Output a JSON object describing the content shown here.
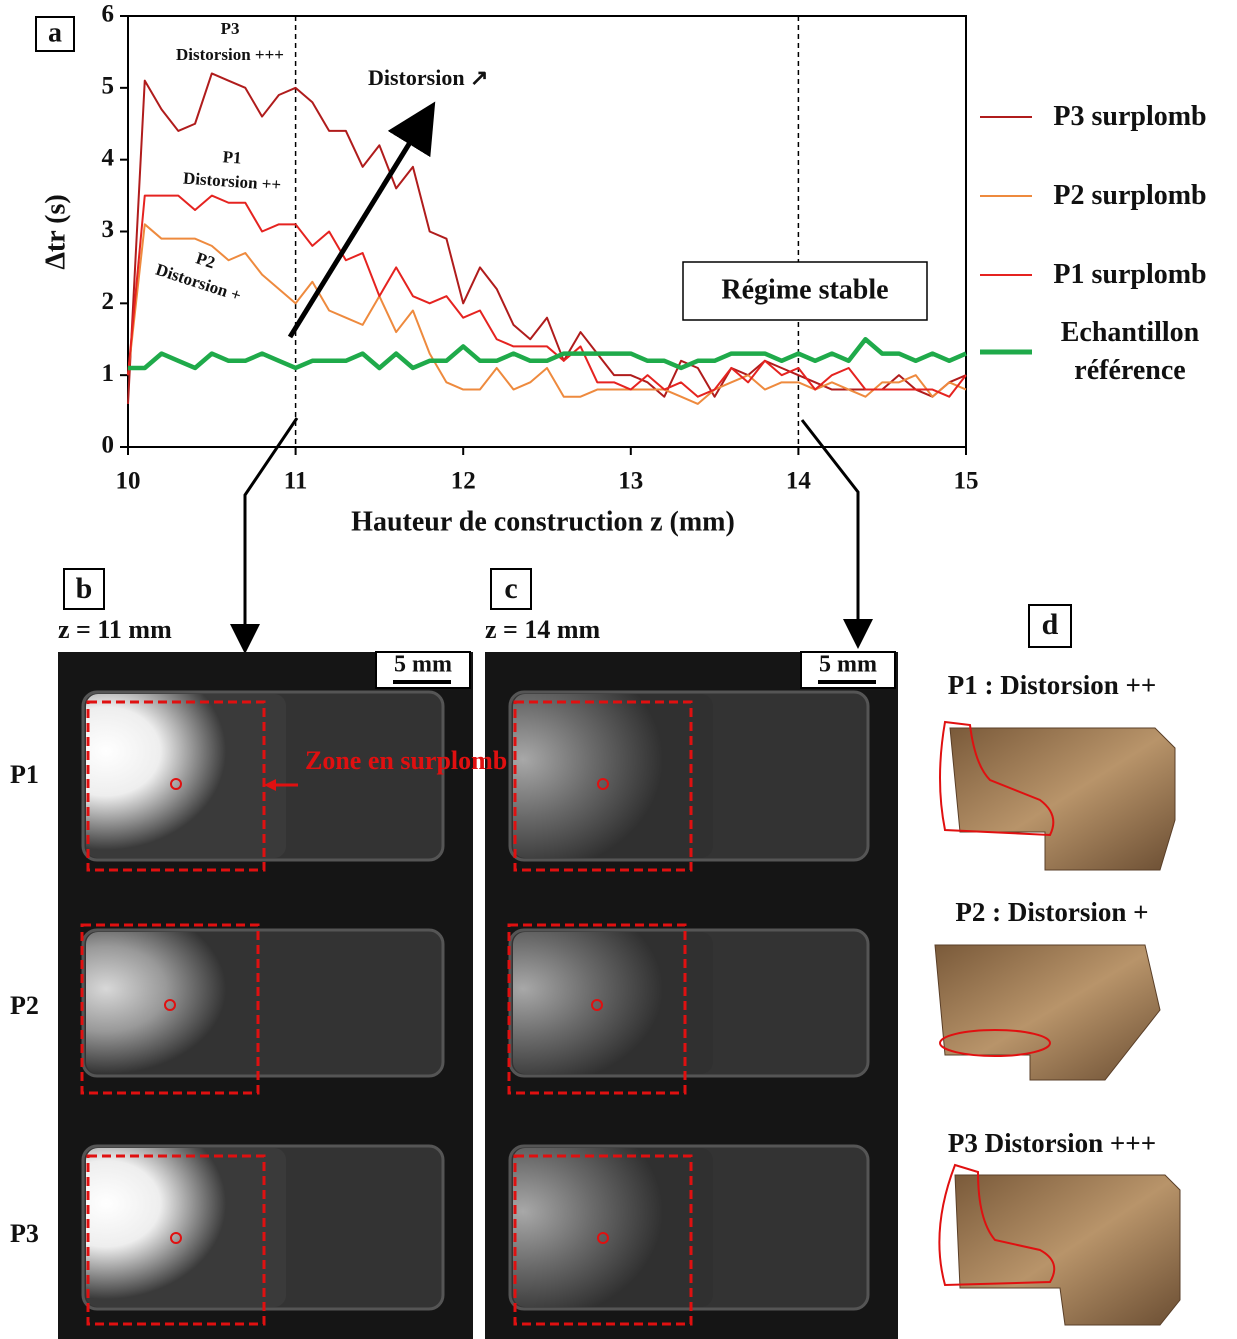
{
  "chart_data": {
    "type": "line",
    "panel_label": "a",
    "y_label": "Δtr (s)",
    "x_label": "Hauteur de construction z (mm)",
    "x": [
      10,
      10.1,
      10.2,
      10.3,
      10.4,
      10.5,
      10.6,
      10.7,
      10.8,
      10.9,
      11,
      11.1,
      11.2,
      11.3,
      11.4,
      11.5,
      11.6,
      11.7,
      11.8,
      11.9,
      12,
      12.1,
      12.2,
      12.3,
      12.4,
      12.5,
      12.6,
      12.7,
      12.8,
      12.9,
      13,
      13.1,
      13.2,
      13.3,
      13.4,
      13.5,
      13.6,
      13.7,
      13.8,
      13.9,
      14,
      14.1,
      14.2,
      14.3,
      14.4,
      14.5,
      14.6,
      14.7,
      14.8,
      14.9,
      15
    ],
    "series": [
      {
        "name": "P3 surplomb",
        "color": "#b01c1c",
        "values": [
          0.6,
          5.1,
          4.7,
          4.4,
          4.5,
          5.2,
          5.1,
          5.0,
          4.6,
          4.9,
          5.0,
          4.8,
          4.4,
          4.4,
          3.9,
          4.2,
          3.6,
          3.9,
          3.0,
          2.9,
          2.0,
          2.5,
          2.2,
          1.7,
          1.5,
          1.8,
          1.2,
          1.6,
          1.3,
          1.0,
          1.0,
          0.9,
          0.7,
          1.2,
          1.1,
          0.7,
          1.1,
          1.0,
          1.2,
          1.1,
          1.0,
          0.9,
          0.8,
          0.8,
          0.8,
          0.8,
          1.0,
          0.8,
          0.7,
          0.9,
          1.0
        ]
      },
      {
        "name": "P2 surplomb",
        "color": "#ee8a3e",
        "values": [
          1.0,
          3.1,
          2.9,
          2.9,
          2.9,
          2.8,
          2.6,
          2.7,
          2.4,
          2.2,
          2.0,
          2.3,
          1.9,
          1.8,
          1.7,
          2.1,
          1.6,
          1.9,
          1.3,
          0.9,
          0.8,
          0.8,
          1.1,
          0.8,
          0.9,
          1.1,
          0.7,
          0.7,
          0.8,
          0.8,
          0.8,
          0.8,
          0.8,
          0.7,
          0.6,
          0.8,
          0.9,
          1.0,
          0.8,
          0.9,
          0.9,
          0.8,
          0.9,
          0.8,
          0.7,
          0.9,
          0.9,
          1.0,
          0.7,
          0.9,
          0.8
        ]
      },
      {
        "name": "P1 surplomb",
        "color": "#e52320",
        "values": [
          1.0,
          3.5,
          3.5,
          3.5,
          3.3,
          3.5,
          3.4,
          3.4,
          3.0,
          3.1,
          3.1,
          2.8,
          3.0,
          2.6,
          2.7,
          2.1,
          2.5,
          2.1,
          2.0,
          2.1,
          1.8,
          1.9,
          1.5,
          1.4,
          1.4,
          1.4,
          1.2,
          1.4,
          0.9,
          0.9,
          0.8,
          1.0,
          0.8,
          0.9,
          0.7,
          0.8,
          1.1,
          0.9,
          1.2,
          1.0,
          1.1,
          0.8,
          1.0,
          1.1,
          0.8,
          0.8,
          0.8,
          0.8,
          0.8,
          0.7,
          1.0
        ]
      },
      {
        "name": "Echantillon référence",
        "color": "#1faa4a",
        "values": [
          1.1,
          1.1,
          1.3,
          1.2,
          1.1,
          1.3,
          1.2,
          1.2,
          1.3,
          1.2,
          1.1,
          1.2,
          1.2,
          1.2,
          1.3,
          1.1,
          1.3,
          1.1,
          1.2,
          1.2,
          1.4,
          1.2,
          1.2,
          1.3,
          1.2,
          1.2,
          1.3,
          1.3,
          1.3,
          1.3,
          1.3,
          1.2,
          1.2,
          1.1,
          1.2,
          1.2,
          1.3,
          1.3,
          1.3,
          1.2,
          1.3,
          1.2,
          1.3,
          1.2,
          1.5,
          1.3,
          1.3,
          1.2,
          1.3,
          1.2,
          1.3
        ]
      }
    ],
    "xlim": [
      10,
      15
    ],
    "xticks": [
      10,
      11,
      12,
      13,
      14,
      15
    ],
    "ylim": [
      0,
      6
    ],
    "yticks": [
      0,
      1,
      2,
      3,
      4,
      5,
      6
    ],
    "markers": [
      11,
      14
    ],
    "annotations": [
      "P3",
      "Distorsion +++",
      "P1",
      "Distorsion ++",
      "P2",
      "Distorsion +",
      "Distorsion ↗",
      "Régime stable"
    ]
  },
  "panels": [
    {
      "label": "b",
      "caption": "z = 11 mm",
      "scale": "5 mm"
    },
    {
      "label": "c",
      "caption": "z = 14 mm",
      "scale": "5 mm"
    },
    {
      "label": "d",
      "items": [
        "P1 : Distorsion ++",
        "P2 : Distorsion +",
        "P3 Distorsion +++"
      ]
    }
  ],
  "rows": [
    "P1",
    "P2",
    "P3"
  ],
  "zone_label": "Zone en surplomb"
}
